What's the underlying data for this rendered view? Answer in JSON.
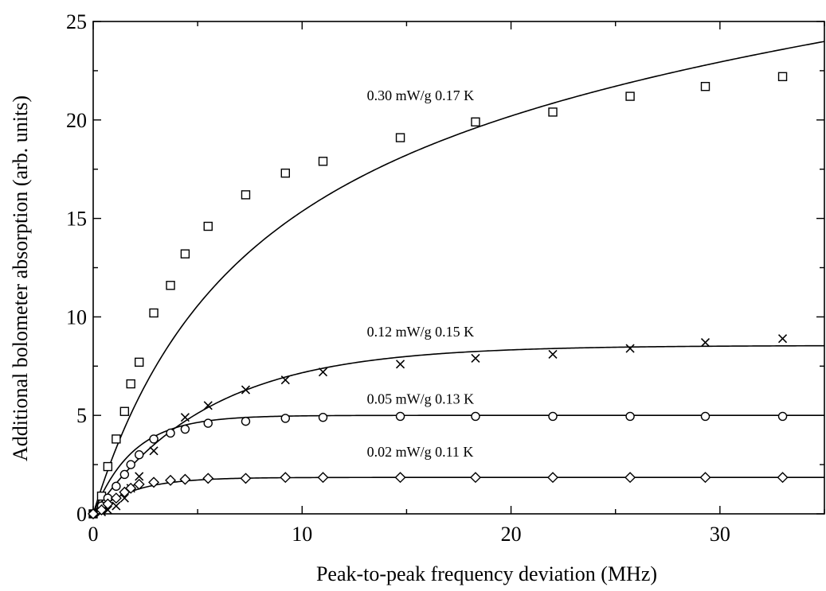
{
  "chart_data": {
    "type": "scatter",
    "title": "",
    "xlabel": "Peak-to-peak frequency deviation  (MHz)",
    "ylabel": "Additional bolometer absorption (arb. units)",
    "xlim": [
      0,
      35
    ],
    "ylim": [
      0,
      25
    ],
    "xticks": [
      0,
      10,
      20,
      30
    ],
    "yticks": [
      0,
      5,
      10,
      15,
      20,
      25
    ],
    "x_tick_labels": [
      "0",
      "10",
      "20",
      "30"
    ],
    "y_tick_labels": [
      "0",
      "5",
      "10",
      "15",
      "20",
      "25"
    ],
    "grid": false,
    "legend": "none",
    "series": [
      {
        "name": "0.30 mW/g  0.17 K",
        "marker": "square",
        "x": [
          0.0,
          0.4,
          0.7,
          1.1,
          1.5,
          1.8,
          2.2,
          2.9,
          3.7,
          4.4,
          5.5,
          7.3,
          9.2,
          11.0,
          14.7,
          18.3,
          22.0,
          25.7,
          29.3,
          33.0
        ],
        "y": [
          0.0,
          0.9,
          2.4,
          3.8,
          5.2,
          6.6,
          7.7,
          10.2,
          11.6,
          13.2,
          14.6,
          16.2,
          17.3,
          17.9,
          19.1,
          19.9,
          20.4,
          21.2,
          21.7,
          22.2
        ],
        "fit": {
          "A": 25.3,
          "B": 7.5,
          "C": 0.09
        }
      },
      {
        "name": "0.12 mW/g  0.15 K",
        "marker": "cross",
        "x": [
          0.0,
          0.4,
          0.7,
          1.1,
          1.5,
          1.8,
          2.2,
          2.9,
          4.4,
          5.5,
          7.3,
          9.2,
          11.0,
          14.7,
          18.3,
          22.0,
          25.7,
          29.3,
          33.0
        ],
        "y": [
          0.0,
          0.1,
          0.2,
          0.4,
          0.8,
          1.3,
          1.9,
          3.2,
          4.9,
          5.5,
          6.3,
          6.8,
          7.2,
          7.6,
          7.9,
          8.1,
          8.4,
          8.7,
          8.9
        ],
        "fit": {
          "A": 8.55,
          "tau": 5.5
        }
      },
      {
        "name": "0.05 mW/g  0.13 K",
        "marker": "circle",
        "x": [
          0.0,
          0.4,
          0.7,
          1.1,
          1.5,
          1.8,
          2.2,
          2.9,
          3.7,
          4.4,
          5.5,
          7.3,
          9.2,
          11.0,
          14.7,
          18.3,
          22.0,
          25.7,
          29.3,
          33.0
        ],
        "y": [
          0.0,
          0.4,
          0.8,
          1.4,
          2.0,
          2.5,
          3.0,
          3.8,
          4.1,
          4.3,
          4.6,
          4.7,
          4.85,
          4.9,
          4.95,
          4.95,
          4.95,
          4.95,
          4.95,
          4.95
        ],
        "fit": {
          "A": 5.0,
          "tau": 1.9
        }
      },
      {
        "name": "0.02 mW/g  0.11 K",
        "marker": "diamond",
        "x": [
          0.0,
          0.4,
          0.7,
          1.1,
          1.5,
          1.8,
          2.2,
          2.9,
          3.7,
          4.4,
          5.5,
          7.3,
          9.2,
          11.0,
          14.7,
          18.3,
          22.0,
          25.7,
          29.3,
          33.0
        ],
        "y": [
          0.0,
          0.2,
          0.5,
          0.8,
          1.1,
          1.3,
          1.5,
          1.6,
          1.7,
          1.75,
          1.8,
          1.8,
          1.85,
          1.85,
          1.85,
          1.85,
          1.85,
          1.85,
          1.85,
          1.85
        ],
        "fit": {
          "A": 1.85,
          "tau": 1.9
        }
      }
    ],
    "annotations": [
      {
        "text": "0.30 mW/g  0.17 K",
        "x": 13.1,
        "y": 21.0
      },
      {
        "text": "0.12 mW/g  0.15 K",
        "x": 13.1,
        "y": 9.0
      },
      {
        "text": "0.05 mW/g  0.13 K",
        "x": 13.1,
        "y": 5.6
      },
      {
        "text": "0.02 mW/g  0.11 K",
        "x": 13.1,
        "y": 2.9
      }
    ]
  }
}
